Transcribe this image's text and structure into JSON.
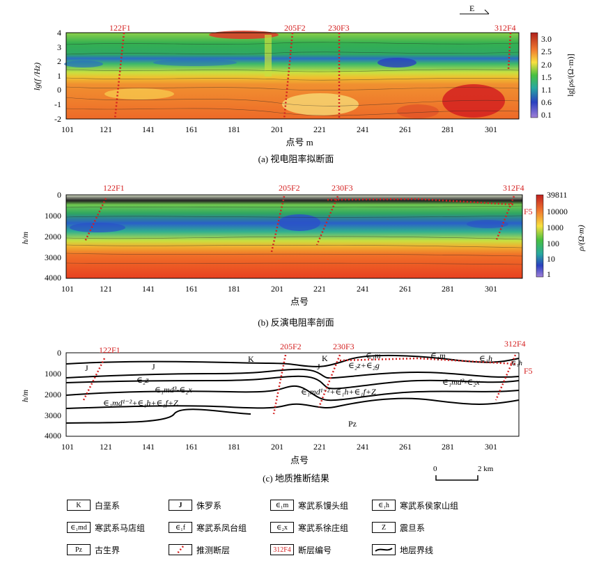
{
  "compass": {
    "label": "E"
  },
  "panel_a": {
    "caption": "(a)  视电阻率拟断面",
    "y_label": "lg(f /Hz)",
    "x_label": "点号  m",
    "y_ticks": [
      "4",
      "3",
      "2",
      "1",
      "0",
      "-1",
      "-2"
    ],
    "x_ticks": [
      "101",
      "121",
      "141",
      "161",
      "181",
      "201",
      "221",
      "241",
      "261",
      "281",
      "301"
    ],
    "colorbar_ticks": [
      "3.0",
      "2.5",
      "2.0",
      "1.5",
      "1.1",
      "0.6",
      "0.1"
    ],
    "colorbar_label": "lg[ρs/(Ω·m)]",
    "faults": [
      "122F1",
      "205F2",
      "230F3",
      "312F4"
    ]
  },
  "panel_b": {
    "caption": "(b)  反演电阻率剖面",
    "y_label": "h/m",
    "x_label": "点号",
    "y_ticks": [
      "0",
      "1000",
      "2000",
      "3000",
      "4000"
    ],
    "x_ticks": [
      "101",
      "121",
      "141",
      "161",
      "181",
      "201",
      "221",
      "241",
      "261",
      "281",
      "301"
    ],
    "colorbar_ticks": [
      "39811",
      "10000",
      "1000",
      "100",
      "10",
      "1"
    ],
    "colorbar_label": "ρ/(Ω·m)",
    "faults": [
      "122F1",
      "205F2",
      "230F3",
      "312F4"
    ],
    "extra_fault": "F5"
  },
  "panel_c": {
    "caption": "(c)  地质推断结果",
    "y_label": "h/m",
    "x_label": "点号",
    "y_ticks": [
      "0",
      "1000",
      "2000",
      "3000",
      "4000"
    ],
    "x_ticks": [
      "101",
      "121",
      "141",
      "161",
      "181",
      "201",
      "221",
      "241",
      "261",
      "281",
      "301"
    ],
    "faults": [
      "122F1",
      "205F2",
      "230F3",
      "312F4"
    ],
    "extra_fault": "F5",
    "unit_labels": {
      "J1": "J",
      "J2": "J",
      "K1": "K",
      "K2": "K",
      "J3": "J",
      "e2z": "∈₂z",
      "e1md3": "∈₁md³-∈₂x",
      "e1md3b": "∈₁md³-∈₂x",
      "e1md12": "∈₁md¹⁻²+∈₁h+∈₁f+Z",
      "e1md12b": "∈₁md¹⁻²+∈₁h+∈₁f+Z",
      "e1m1": "∈₁m",
      "e1m2": "∈₁m",
      "e1h": "∈₁h",
      "e1h2": "∈₁h",
      "e2zg": "∈₂z+∈₂g",
      "pz": "Pz"
    },
    "scale_bar": {
      "start": "0",
      "end": "2 km"
    }
  },
  "legend": [
    [
      {
        "sym": "K",
        "label": "白垩系"
      },
      {
        "sym": "J",
        "label": "侏罗系"
      },
      {
        "sym": "∈₁m",
        "label": "寒武系馒头组"
      },
      {
        "sym": "∈₁h",
        "label": "寒武系侯家山组"
      }
    ],
    [
      {
        "sym": "∈₁md",
        "label": "寒武系马店组"
      },
      {
        "sym": "∈₁f",
        "label": "寒武系凤台组"
      },
      {
        "sym": "∈₂x",
        "label": "寒武系徐庄组"
      },
      {
        "sym": "Z",
        "label": "震旦系"
      }
    ],
    [
      {
        "sym": "Pz",
        "label": "古生界"
      },
      {
        "sym": "dots",
        "label": "推测断层"
      },
      {
        "sym": "312F4",
        "label": "断层编号"
      },
      {
        "sym": "line",
        "label": "地层界线"
      }
    ]
  ],
  "colors": {
    "fault": "#d42020",
    "high": "#d73020",
    "low": "#2a3fc0"
  }
}
